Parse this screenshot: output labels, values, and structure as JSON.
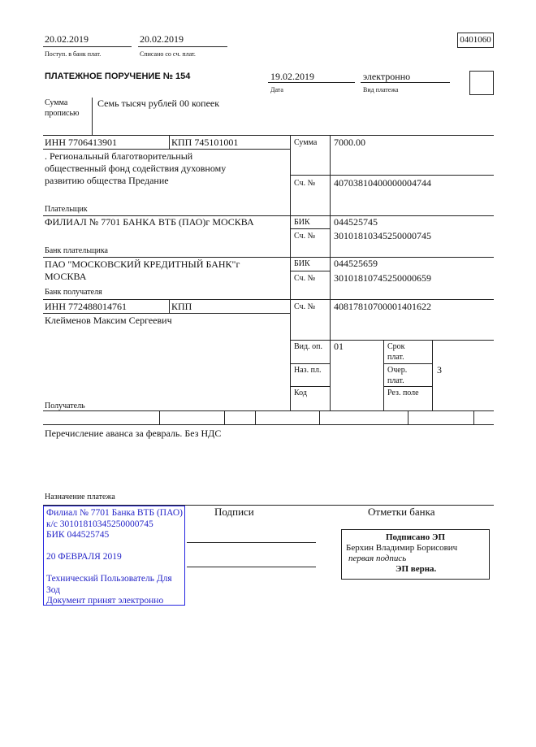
{
  "header": {
    "received_date": "20.02.2019",
    "received_label": "Поступ. в банк плат.",
    "debited_date": "20.02.2019",
    "debited_label": "Списано со сч. плат.",
    "form_code": "0401060",
    "title": "ПЛАТЕЖНОЕ ПОРУЧЕНИЕ № 154",
    "date": "19.02.2019",
    "date_label": "Дата",
    "payment_type": "электронно",
    "payment_type_label": "Вид платежа"
  },
  "amount_words": {
    "label": "Сумма прописью",
    "value": "Семь тысяч рублей 00 копеек"
  },
  "payer": {
    "inn": "ИНН 7706413901",
    "kpp": "КПП 745101001",
    "name_lines": [
      ". Региональный благотворительный",
      "общественный фонд содействия духовному",
      "развитию общества Предание"
    ],
    "label": "Плательщик",
    "sum_label": "Сумма",
    "sum": "7000.00",
    "account_label": "Сч. №",
    "account": "40703810400000004744"
  },
  "payer_bank": {
    "name": "ФИЛИАЛ № 7701 БАНКА ВТБ (ПАО)г МОСКВА",
    "label": "Банк плательщика",
    "bik_label": "БИК",
    "bik": "044525745",
    "account_label": "Сч. №",
    "account": "30101810345250000745"
  },
  "payee_bank": {
    "name_lines": [
      "ПАО \"МОСКОВСКИЙ КРЕДИТНЫЙ БАНК\"г",
      "МОСКВА"
    ],
    "label": "Банк получателя",
    "bik_label": "БИК",
    "bik": "044525659",
    "account_label": "Сч. №",
    "account": "30101810745250000659"
  },
  "payee": {
    "inn": "ИНН 772488014761",
    "kpp": "КПП",
    "name": "Клейменов Максим Сергеевич",
    "label": "Получатель",
    "account_label": "Сч. №",
    "account": "40817810700001401622"
  },
  "codes": {
    "op_type_label": "Вид. оп.",
    "op_type": "01",
    "purpose_code_label": "Наз. пл.",
    "code_label": "Код",
    "term_label_1": "Срок",
    "term_label_2": "плат.",
    "priority_label_1": "Очер.",
    "priority_label_2": "плат.",
    "priority": "3",
    "reserve_label": "Рез. поле"
  },
  "purpose": {
    "text": "Перечисление аванса за февраль. Без НДС",
    "label": "Назначение платежа"
  },
  "signatures_label": "Подписи",
  "bank_marks_label": "Отметки банка",
  "stamp": {
    "lines": [
      "Филиал № 7701 Банка ВТБ (ПАО)",
      "к/с 30101810345250000745",
      "БИК 044525745",
      "",
      "20 ФЕВРАЛЯ 2019",
      "",
      "Технический Пользователь Для",
      "Зод",
      "Документ принят электронно"
    ],
    "color": "#2424c8"
  },
  "bank_mark": {
    "title": "Подписано ЭП",
    "signer": "Берхин Владимир Борисович",
    "role": "первая подпись",
    "status": "ЭП верна."
  }
}
